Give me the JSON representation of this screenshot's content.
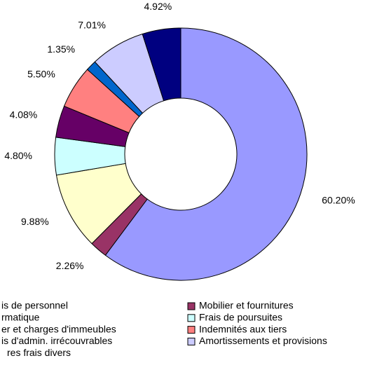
{
  "chart_data": {
    "type": "donut",
    "categories": [
      "is de personnel",
      "Mobilier et fournitures",
      "rmatique",
      "Frais de poursuites",
      "er et charges d'immeubles",
      "Indemnités aux tiers",
      "is d'admin. irrécouvrables",
      "Amortissements et provisions",
      "res frais divers"
    ],
    "values": [
      60.2,
      2.26,
      9.88,
      4.8,
      4.08,
      5.5,
      1.35,
      7.01,
      4.92
    ],
    "value_labels": [
      "60.20%",
      "2.26%",
      "9.88%",
      "4.80%",
      "4.08%",
      "5.50%",
      "1.35%",
      "7.01%",
      "4.92%"
    ],
    "colors": [
      "#9999FF",
      "#993366",
      "#FFFFCC",
      "#CCFFFF",
      "#660066",
      "#FF8080",
      "#0066CC",
      "#CCCCFF",
      "#000080"
    ]
  }
}
